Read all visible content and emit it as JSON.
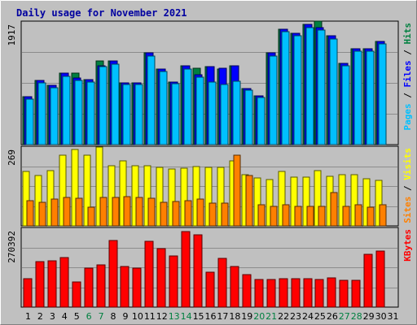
{
  "chart_data": {
    "type": "bar",
    "title": "Daily usage for November 2021",
    "days": [
      "1",
      "2",
      "3",
      "4",
      "5",
      "6",
      "7",
      "8",
      "9",
      "10",
      "11",
      "12",
      "13",
      "14",
      "15",
      "16",
      "17",
      "18",
      "19",
      "20",
      "21",
      "22",
      "23",
      "24",
      "25",
      "26",
      "27",
      "28",
      "29",
      "30",
      "31"
    ],
    "weekend_days": [
      "6",
      "7",
      "13",
      "14",
      "20",
      "21",
      "27",
      "28"
    ],
    "panels": [
      {
        "name": "top",
        "max_label": "1917",
        "max": 1917,
        "side_labels": [
          {
            "text": "Pages",
            "color": "#00c0ff"
          },
          {
            "text": " / ",
            "color": "#000000"
          },
          {
            "text": "Files",
            "color": "#0000ff"
          },
          {
            "text": " / ",
            "color": "#000000"
          },
          {
            "text": "Hits",
            "color": "#008040"
          }
        ],
        "series": [
          {
            "name": "Hits",
            "color": "#008040",
            "values": [
              760,
              1020,
              950,
              1140,
              1140,
              1040,
              1340,
              1330,
              990,
              990,
              1460,
              1210,
              1000,
              1260,
              1220,
              1240,
              1210,
              1250,
              900,
              780,
              1460,
              1840,
              1780,
              1920,
              1970,
              1730,
              1290,
              1530,
              1530,
              1650,
              0
            ]
          },
          {
            "name": "Files",
            "color": "#0000ff",
            "values": [
              760,
              1020,
              950,
              1140,
              1060,
              1040,
              1260,
              1330,
              990,
              990,
              1460,
              1210,
              1000,
              1260,
              1120,
              1240,
              1220,
              1250,
              900,
              780,
              1460,
              1840,
              1780,
              1920,
              1870,
              1730,
              1290,
              1530,
              1530,
              1650,
              0
            ]
          },
          {
            "name": "Pages",
            "color": "#00c0ff",
            "values": [
              720,
              980,
              910,
              1090,
              1020,
              1000,
              1240,
              1280,
              960,
              960,
              1410,
              1170,
              970,
              1210,
              1080,
              1000,
              960,
              1010,
              870,
              750,
              1410,
              1800,
              1730,
              1870,
              1830,
              1690,
              1250,
              1490,
              1490,
              1600,
              0
            ]
          }
        ]
      },
      {
        "name": "middle",
        "max_label": "269",
        "max": 269,
        "side_labels": [
          {
            "text": "Sites",
            "color": "#ff8000"
          },
          {
            "text": " / ",
            "color": "#000000"
          },
          {
            "text": "Visits",
            "color": "#ffff00"
          }
        ],
        "series": [
          {
            "name": "Visits",
            "color": "#ffff00",
            "values": [
              191,
              178,
              194,
              248,
              268,
              250,
              278,
              213,
              230,
              211,
              212,
              205,
              201,
              204,
              210,
              206,
              206,
              230,
              180,
              170,
              164,
              191,
              172,
              172,
              195,
              174,
              179,
              181,
              165,
              161,
              0
            ]
          },
          {
            "name": "Sites",
            "color": "#ff8000",
            "values": [
              89,
              84,
              94,
              99,
              97,
              66,
              99,
              101,
              104,
              100,
              97,
              83,
              85,
              89,
              94,
              79,
              79,
              250,
              178,
              75,
              70,
              74,
              70,
              69,
              69,
              118,
              70,
              75,
              67,
              73,
              0
            ]
          }
        ]
      },
      {
        "name": "bottom",
        "max_label": "270392",
        "max": 270392,
        "side_labels": [
          {
            "text": "KBytes",
            "color": "#ff0000"
          }
        ],
        "series": [
          {
            "name": "KBytes",
            "color": "#ff0000",
            "values": [
              101000,
              160000,
              165000,
              175000,
              88000,
              139000,
              150000,
              235000,
              144000,
              139000,
              232000,
              207000,
              180000,
              268000,
              256000,
              124000,
              173000,
              145000,
              115000,
              98000,
              98000,
              101000,
              100000,
              102000,
              98000,
              103000,
              94000,
              95000,
              186000,
              199000,
              0
            ]
          }
        ]
      }
    ]
  }
}
